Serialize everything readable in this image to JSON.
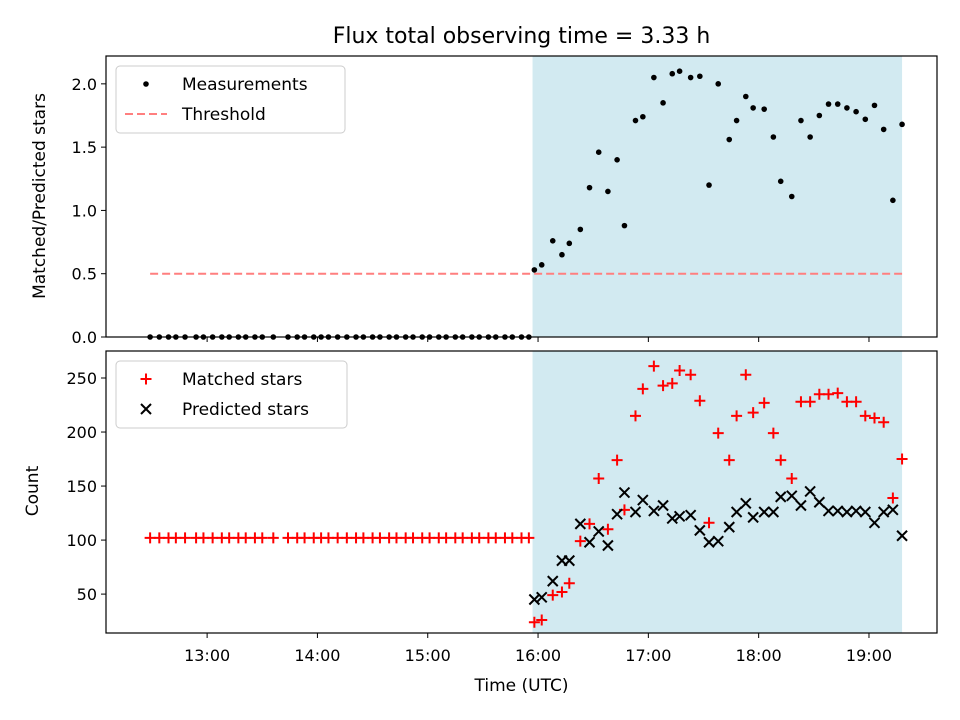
{
  "chart_data": {
    "title": "Flux total observing time = 3.33 h",
    "xlabel": "Time (UTC)",
    "x_ticks": [
      "13:00",
      "14:00",
      "15:00",
      "16:00",
      "17:00",
      "18:00",
      "19:00"
    ],
    "x_range": [
      "12:05",
      "19:37"
    ],
    "shaded_interval": [
      "15:57",
      "19:18"
    ],
    "colors": {
      "shade": "#add8e6",
      "measurements": "#000000",
      "threshold": "#ff7f7f",
      "matched": "#ff0000",
      "predicted": "#000000"
    },
    "panels": [
      {
        "type": "scatter",
        "ylabel": "Matched/Predicted stars",
        "ylim": [
          0,
          2.22
        ],
        "y_ticks": [
          "0.0",
          "0.5",
          "1.0",
          "1.5",
          "2.0"
        ],
        "legend": "top-left",
        "series": [
          {
            "name": "Measurements",
            "marker": "dot",
            "points": [
              [
                "12:29",
                0
              ],
              [
                "12:34",
                0
              ],
              [
                "12:39",
                0
              ],
              [
                "12:43",
                0
              ],
              [
                "12:48",
                0
              ],
              [
                "12:54",
                0
              ],
              [
                "12:58",
                0
              ],
              [
                "13:03",
                0
              ],
              [
                "13:08",
                0
              ],
              [
                "13:12",
                0
              ],
              [
                "13:17",
                0
              ],
              [
                "13:21",
                0
              ],
              [
                "13:26",
                0
              ],
              [
                "13:30",
                0
              ],
              [
                "13:36",
                0
              ],
              [
                "13:44",
                0
              ],
              [
                "13:49",
                0
              ],
              [
                "13:53",
                0
              ],
              [
                "13:58",
                0
              ],
              [
                "14:02",
                0
              ],
              [
                "14:06",
                0
              ],
              [
                "14:11",
                0
              ],
              [
                "14:16",
                0
              ],
              [
                "14:21",
                0
              ],
              [
                "14:25",
                0
              ],
              [
                "14:30",
                0
              ],
              [
                "14:34",
                0
              ],
              [
                "14:39",
                0
              ],
              [
                "14:43",
                0
              ],
              [
                "14:48",
                0
              ],
              [
                "14:52",
                0
              ],
              [
                "14:57",
                0
              ],
              [
                "15:01",
                0
              ],
              [
                "15:06",
                0
              ],
              [
                "15:10",
                0
              ],
              [
                "15:15",
                0
              ],
              [
                "15:19",
                0
              ],
              [
                "15:24",
                0
              ],
              [
                "15:28",
                0
              ],
              [
                "15:33",
                0
              ],
              [
                "15:37",
                0
              ],
              [
                "15:42",
                0
              ],
              [
                "15:46",
                0
              ],
              [
                "15:51",
                0
              ],
              [
                "15:55",
                0
              ],
              [
                "15:58",
                0.53
              ],
              [
                "16:02",
                0.57
              ],
              [
                "16:08",
                0.76
              ],
              [
                "16:13",
                0.65
              ],
              [
                "16:17",
                0.74
              ],
              [
                "16:23",
                0.85
              ],
              [
                "16:28",
                1.18
              ],
              [
                "16:33",
                1.46
              ],
              [
                "16:38",
                1.15
              ],
              [
                "16:43",
                1.4
              ],
              [
                "16:47",
                0.88
              ],
              [
                "16:53",
                1.71
              ],
              [
                "16:57",
                1.74
              ],
              [
                "17:03",
                2.05
              ],
              [
                "17:08",
                1.85
              ],
              [
                "17:13",
                2.08
              ],
              [
                "17:17",
                2.1
              ],
              [
                "17:23",
                2.05
              ],
              [
                "17:28",
                2.06
              ],
              [
                "17:33",
                1.2
              ],
              [
                "17:38",
                2.0
              ],
              [
                "17:44",
                1.56
              ],
              [
                "17:48",
                1.71
              ],
              [
                "17:53",
                1.9
              ],
              [
                "17:57",
                1.81
              ],
              [
                "18:03",
                1.8
              ],
              [
                "18:08",
                1.58
              ],
              [
                "18:12",
                1.23
              ],
              [
                "18:18",
                1.11
              ],
              [
                "18:23",
                1.71
              ],
              [
                "18:28",
                1.58
              ],
              [
                "18:33",
                1.75
              ],
              [
                "18:38",
                1.84
              ],
              [
                "18:43",
                1.84
              ],
              [
                "18:48",
                1.81
              ],
              [
                "18:53",
                1.78
              ],
              [
                "18:58",
                1.72
              ],
              [
                "19:03",
                1.83
              ],
              [
                "19:08",
                1.64
              ],
              [
                "19:13",
                1.08
              ],
              [
                "19:18",
                1.68
              ]
            ]
          },
          {
            "name": "Threshold",
            "style": "dashed",
            "y": 0.5,
            "x_range": [
              "12:29",
              "19:18"
            ]
          }
        ]
      },
      {
        "type": "scatter",
        "ylabel": "Count",
        "ylim": [
          14,
          275
        ],
        "y_ticks": [
          "50",
          "100",
          "150",
          "200",
          "250"
        ],
        "legend": "top-left",
        "series": [
          {
            "name": "Matched stars",
            "marker": "plus",
            "points": [
              [
                "12:29",
                102
              ],
              [
                "12:34",
                102
              ],
              [
                "12:39",
                102
              ],
              [
                "12:43",
                102
              ],
              [
                "12:48",
                102
              ],
              [
                "12:54",
                102
              ],
              [
                "12:58",
                102
              ],
              [
                "13:03",
                102
              ],
              [
                "13:08",
                102
              ],
              [
                "13:12",
                102
              ],
              [
                "13:17",
                102
              ],
              [
                "13:21",
                102
              ],
              [
                "13:26",
                102
              ],
              [
                "13:30",
                102
              ],
              [
                "13:36",
                102
              ],
              [
                "13:44",
                102
              ],
              [
                "13:49",
                102
              ],
              [
                "13:53",
                102
              ],
              [
                "13:58",
                102
              ],
              [
                "14:02",
                102
              ],
              [
                "14:06",
                102
              ],
              [
                "14:11",
                102
              ],
              [
                "14:16",
                102
              ],
              [
                "14:21",
                102
              ],
              [
                "14:25",
                102
              ],
              [
                "14:30",
                102
              ],
              [
                "14:34",
                102
              ],
              [
                "14:39",
                102
              ],
              [
                "14:43",
                102
              ],
              [
                "14:48",
                102
              ],
              [
                "14:52",
                102
              ],
              [
                "14:57",
                102
              ],
              [
                "15:01",
                102
              ],
              [
                "15:06",
                102
              ],
              [
                "15:10",
                102
              ],
              [
                "15:15",
                102
              ],
              [
                "15:19",
                102
              ],
              [
                "15:24",
                102
              ],
              [
                "15:28",
                102
              ],
              [
                "15:33",
                102
              ],
              [
                "15:37",
                102
              ],
              [
                "15:42",
                102
              ],
              [
                "15:46",
                102
              ],
              [
                "15:51",
                102
              ],
              [
                "15:55",
                102
              ],
              [
                "15:58",
                24
              ],
              [
                "16:02",
                26
              ],
              [
                "16:08",
                49
              ],
              [
                "16:13",
                52
              ],
              [
                "16:17",
                60
              ],
              [
                "16:23",
                99
              ],
              [
                "16:28",
                115
              ],
              [
                "16:33",
                157
              ],
              [
                "16:38",
                110
              ],
              [
                "16:43",
                174
              ],
              [
                "16:47",
                128
              ],
              [
                "16:53",
                215
              ],
              [
                "16:57",
                240
              ],
              [
                "17:03",
                261
              ],
              [
                "17:08",
                243
              ],
              [
                "17:13",
                245
              ],
              [
                "17:17",
                257
              ],
              [
                "17:23",
                253
              ],
              [
                "17:28",
                229
              ],
              [
                "17:33",
                116
              ],
              [
                "17:38",
                199
              ],
              [
                "17:44",
                174
              ],
              [
                "17:48",
                215
              ],
              [
                "17:53",
                253
              ],
              [
                "17:57",
                218
              ],
              [
                "18:03",
                227
              ],
              [
                "18:08",
                199
              ],
              [
                "18:12",
                174
              ],
              [
                "18:18",
                157
              ],
              [
                "18:23",
                228
              ],
              [
                "18:28",
                228
              ],
              [
                "18:33",
                235
              ],
              [
                "18:38",
                235
              ],
              [
                "18:43",
                236
              ],
              [
                "18:48",
                228
              ],
              [
                "18:53",
                228
              ],
              [
                "18:58",
                215
              ],
              [
                "19:03",
                213
              ],
              [
                "19:08",
                209
              ],
              [
                "19:13",
                139
              ],
              [
                "19:18",
                175
              ]
            ]
          },
          {
            "name": "Predicted stars",
            "marker": "x",
            "points": [
              [
                "15:58",
                45
              ],
              [
                "16:02",
                47
              ],
              [
                "16:08",
                62
              ],
              [
                "16:13",
                81
              ],
              [
                "16:17",
                81
              ],
              [
                "16:23",
                115
              ],
              [
                "16:28",
                98
              ],
              [
                "16:33",
                108
              ],
              [
                "16:38",
                95
              ],
              [
                "16:43",
                124
              ],
              [
                "16:47",
                144
              ],
              [
                "16:53",
                126
              ],
              [
                "16:57",
                137
              ],
              [
                "17:03",
                127
              ],
              [
                "17:08",
                132
              ],
              [
                "17:13",
                120
              ],
              [
                "17:17",
                122
              ],
              [
                "17:23",
                123
              ],
              [
                "17:28",
                109
              ],
              [
                "17:33",
                98
              ],
              [
                "17:38",
                99
              ],
              [
                "17:44",
                112
              ],
              [
                "17:48",
                126
              ],
              [
                "17:53",
                134
              ],
              [
                "17:57",
                121
              ],
              [
                "18:03",
                126
              ],
              [
                "18:08",
                126
              ],
              [
                "18:12",
                140
              ],
              [
                "18:18",
                141
              ],
              [
                "18:23",
                132
              ],
              [
                "18:28",
                145
              ],
              [
                "18:33",
                135
              ],
              [
                "18:38",
                127
              ],
              [
                "18:43",
                127
              ],
              [
                "18:48",
                126
              ],
              [
                "18:53",
                127
              ],
              [
                "18:58",
                126
              ],
              [
                "19:03",
                116
              ],
              [
                "19:08",
                126
              ],
              [
                "19:13",
                128
              ],
              [
                "19:18",
                104
              ]
            ]
          }
        ]
      }
    ]
  }
}
